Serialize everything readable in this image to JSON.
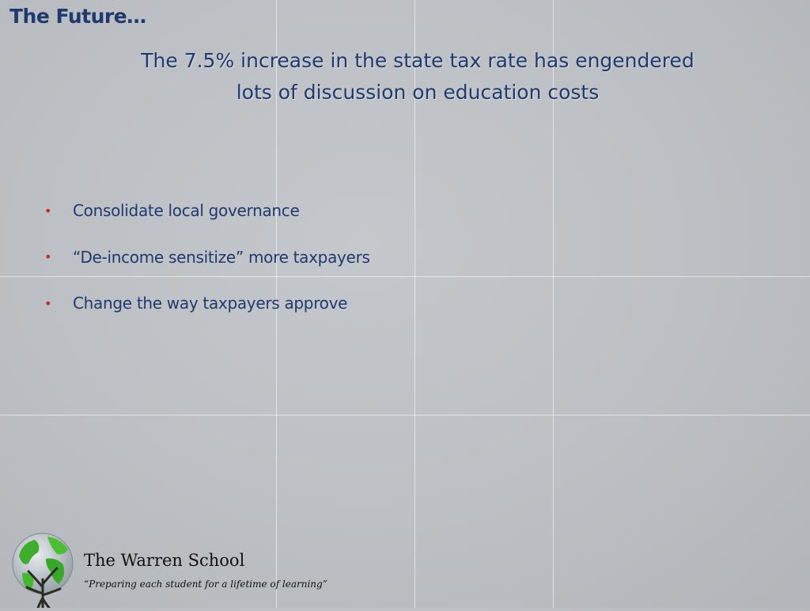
{
  "slide": {
    "title": "The Future…",
    "subtitle_line1": "The 7.5% increase in the state tax rate has engendered",
    "subtitle_line2": "lots of discussion on education costs",
    "bullets": [
      {
        "marker": "•",
        "text": "Consolidate local governance"
      },
      {
        "marker": "•",
        "text": "“De-income sensitize” more taxpayers"
      },
      {
        "marker": "•",
        "text": "Change the way taxpayers approve"
      }
    ]
  },
  "footer": {
    "logo_icon": "globe-tree-logo-icon",
    "school_name": "The Warren School",
    "tagline": "“Preparing each student for a lifetime of learning”"
  },
  "colors": {
    "heading": "#1f3a6e",
    "bullet": "#c62828",
    "background": "#bcbfc3"
  }
}
